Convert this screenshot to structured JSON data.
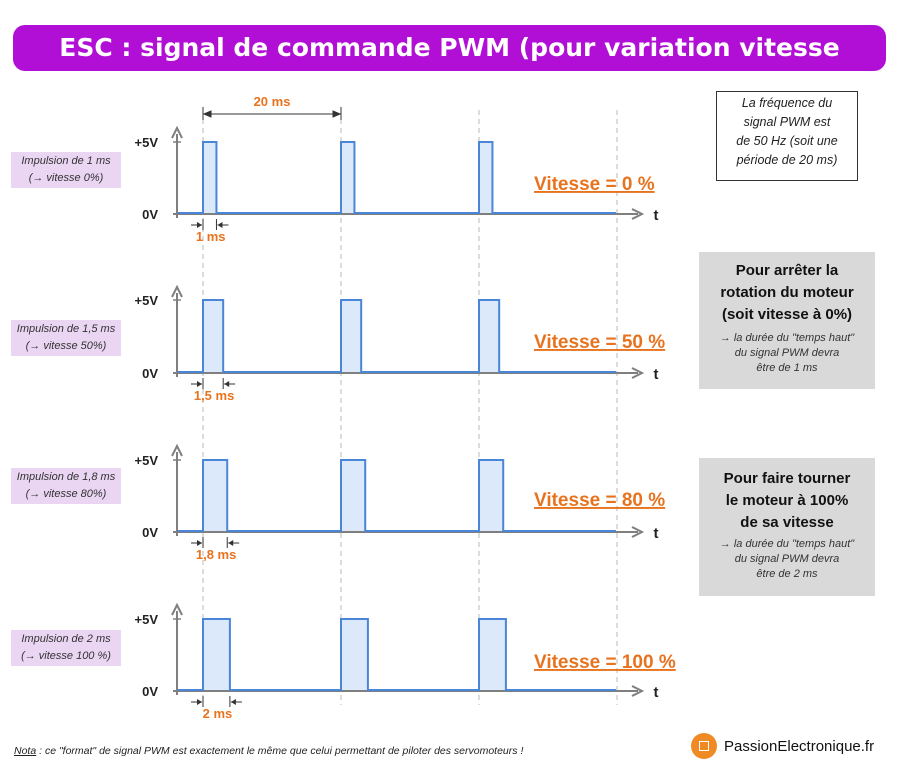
{
  "title": "ESC : signal de commande PWM (pour variation vitesse moteur)",
  "period_label": "20 ms",
  "axis": {
    "high": "+5V",
    "low": "0V",
    "time": "t"
  },
  "rows": [
    {
      "side_line1": "Impulsion de 1 ms",
      "side_line2": "(→ vitesse 0%)",
      "pulse_ms": 1,
      "pulse_label": "1 ms",
      "speed_label": "Vitesse = 0 %"
    },
    {
      "side_line1": "Impulsion de 1,5 ms",
      "side_line2": "(→ vitesse 50%)",
      "pulse_ms": 1.5,
      "pulse_label": "1,5 ms",
      "speed_label": "Vitesse = 50 %"
    },
    {
      "side_line1": "Impulsion de 1,8 ms",
      "side_line2": "(→ vitesse 80%)",
      "pulse_ms": 1.8,
      "pulse_label": "1,8 ms",
      "speed_label": "Vitesse = 80 %"
    },
    {
      "side_line1": "Impulsion de 2 ms",
      "side_line2": "(→ vitesse 100 %)",
      "pulse_ms": 2,
      "pulse_label": "2 ms",
      "speed_label": "Vitesse = 100 %"
    }
  ],
  "freq_note": {
    "l1": "La fréquence du",
    "l2": "signal PWM est",
    "l3": "de 50 Hz (soit une",
    "l4": "période de 20 ms)"
  },
  "box_stop": {
    "t1": "Pour arrêter la",
    "t2": "rotation du moteur",
    "t3": "(soit vitesse à 0%)",
    "s1": "→ la durée du \"temps haut\"",
    "s2": "du signal PWM devra",
    "s3": "être de 1 ms"
  },
  "box_full": {
    "t1": "Pour faire tourner",
    "t2": "le moteur à 100%",
    "t3": "de sa vitesse",
    "s1": "→ la durée du \"temps haut\"",
    "s2": "du signal PWM devra",
    "s3": "être de 2 ms"
  },
  "nota": {
    "label": "Nota",
    "text": " : ce \"format\" de signal PWM est exactement le même que celui permettant de piloter des servomoteurs !"
  },
  "brand": "PassionElectronique.fr",
  "colors": {
    "title_bg": "#b10fd6",
    "side_bg": "#ead5f3",
    "orange": "#e8731e",
    "signal": "#4a86d8",
    "pulse_fill": "#dce9fa",
    "axis": "#7f7f7f",
    "gray_box": "#d9d9d9"
  }
}
